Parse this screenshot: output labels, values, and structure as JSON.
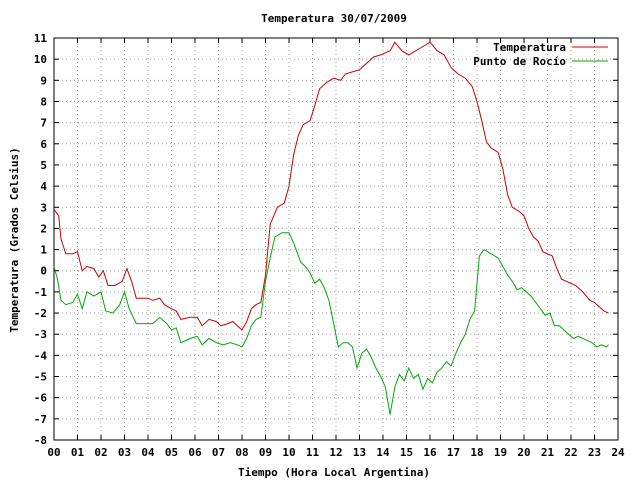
{
  "chart_data": {
    "type": "line",
    "title": "Temperatura 30/07/2009",
    "xlabel": "Tiempo (Hora Local Argentina)",
    "ylabel": "Temperatura (Grados Celsius)",
    "xlim": [
      0,
      24
    ],
    "ylim": [
      -8,
      11
    ],
    "x_ticks": [
      "00",
      "01",
      "02",
      "03",
      "04",
      "05",
      "06",
      "07",
      "08",
      "09",
      "10",
      "11",
      "12",
      "13",
      "14",
      "15",
      "16",
      "17",
      "18",
      "19",
      "20",
      "21",
      "22",
      "23",
      "24"
    ],
    "y_ticks": [
      "-8",
      "-7",
      "-6",
      "-5",
      "-4",
      "-3",
      "-2",
      "-1",
      "0",
      "1",
      "2",
      "3",
      "4",
      "5",
      "6",
      "7",
      "8",
      "9",
      "10",
      "11"
    ],
    "grid": true,
    "legend_position": "top-right",
    "series": [
      {
        "name": "Temperatura",
        "color": "#cc0000",
        "points": [
          [
            0.0,
            2.9
          ],
          [
            0.2,
            2.6
          ],
          [
            0.3,
            1.5
          ],
          [
            0.5,
            0.8
          ],
          [
            0.8,
            0.8
          ],
          [
            1.0,
            0.9
          ],
          [
            1.2,
            0.0
          ],
          [
            1.4,
            0.2
          ],
          [
            1.7,
            0.1
          ],
          [
            1.9,
            -0.3
          ],
          [
            2.1,
            0.0
          ],
          [
            2.3,
            -0.7
          ],
          [
            2.6,
            -0.7
          ],
          [
            2.9,
            -0.5
          ],
          [
            3.1,
            0.1
          ],
          [
            3.3,
            -0.5
          ],
          [
            3.5,
            -1.3
          ],
          [
            4.0,
            -1.3
          ],
          [
            4.2,
            -1.4
          ],
          [
            4.5,
            -1.3
          ],
          [
            4.7,
            -1.6
          ],
          [
            5.0,
            -1.8
          ],
          [
            5.2,
            -1.9
          ],
          [
            5.4,
            -2.3
          ],
          [
            5.8,
            -2.2
          ],
          [
            6.1,
            -2.2
          ],
          [
            6.3,
            -2.6
          ],
          [
            6.6,
            -2.3
          ],
          [
            6.9,
            -2.4
          ],
          [
            7.1,
            -2.6
          ],
          [
            7.4,
            -2.5
          ],
          [
            7.6,
            -2.4
          ],
          [
            7.8,
            -2.6
          ],
          [
            8.0,
            -2.8
          ],
          [
            8.2,
            -2.4
          ],
          [
            8.4,
            -1.8
          ],
          [
            8.6,
            -1.6
          ],
          [
            8.8,
            -1.5
          ],
          [
            9.0,
            -0.2
          ],
          [
            9.2,
            2.2
          ],
          [
            9.5,
            3.0
          ],
          [
            9.8,
            3.2
          ],
          [
            10.0,
            4.0
          ],
          [
            10.2,
            5.5
          ],
          [
            10.4,
            6.4
          ],
          [
            10.6,
            6.9
          ],
          [
            10.9,
            7.1
          ],
          [
            11.1,
            7.8
          ],
          [
            11.3,
            8.6
          ],
          [
            11.6,
            8.9
          ],
          [
            11.9,
            9.1
          ],
          [
            12.2,
            9.0
          ],
          [
            12.4,
            9.3
          ],
          [
            12.7,
            9.4
          ],
          [
            13.0,
            9.5
          ],
          [
            13.3,
            9.8
          ],
          [
            13.6,
            10.1
          ],
          [
            13.9,
            10.2
          ],
          [
            14.1,
            10.3
          ],
          [
            14.3,
            10.4
          ],
          [
            14.5,
            10.8
          ],
          [
            14.8,
            10.4
          ],
          [
            15.1,
            10.2
          ],
          [
            15.4,
            10.4
          ],
          [
            15.7,
            10.6
          ],
          [
            16.0,
            10.8
          ],
          [
            16.3,
            10.4
          ],
          [
            16.6,
            10.2
          ],
          [
            16.9,
            9.6
          ],
          [
            17.2,
            9.3
          ],
          [
            17.5,
            9.1
          ],
          [
            17.8,
            8.7
          ],
          [
            18.0,
            8.0
          ],
          [
            18.2,
            7.1
          ],
          [
            18.4,
            6.1
          ],
          [
            18.6,
            5.8
          ],
          [
            18.9,
            5.6
          ],
          [
            19.1,
            4.8
          ],
          [
            19.3,
            3.6
          ],
          [
            19.5,
            3.0
          ],
          [
            19.8,
            2.8
          ],
          [
            20.0,
            2.6
          ],
          [
            20.2,
            2.0
          ],
          [
            20.4,
            1.6
          ],
          [
            20.6,
            1.4
          ],
          [
            20.8,
            0.9
          ],
          [
            21.0,
            0.8
          ],
          [
            21.2,
            0.7
          ],
          [
            21.4,
            0.1
          ],
          [
            21.6,
            -0.4
          ],
          [
            21.8,
            -0.5
          ],
          [
            22.0,
            -0.6
          ],
          [
            22.2,
            -0.7
          ],
          [
            22.5,
            -1.0
          ],
          [
            22.8,
            -1.4
          ],
          [
            23.0,
            -1.5
          ],
          [
            23.2,
            -1.7
          ],
          [
            23.4,
            -1.9
          ],
          [
            23.6,
            -2.0
          ]
        ]
      },
      {
        "name": "Punto de Rocío",
        "color": "#00aa00",
        "points": [
          [
            0.0,
            0.2
          ],
          [
            0.15,
            -0.4
          ],
          [
            0.3,
            -1.4
          ],
          [
            0.5,
            -1.6
          ],
          [
            0.8,
            -1.5
          ],
          [
            1.0,
            -1.1
          ],
          [
            1.2,
            -1.8
          ],
          [
            1.4,
            -1.0
          ],
          [
            1.7,
            -1.2
          ],
          [
            2.0,
            -1.0
          ],
          [
            2.2,
            -1.9
          ],
          [
            2.5,
            -2.0
          ],
          [
            2.8,
            -1.6
          ],
          [
            3.0,
            -1.0
          ],
          [
            3.2,
            -1.8
          ],
          [
            3.5,
            -2.5
          ],
          [
            4.0,
            -2.5
          ],
          [
            4.2,
            -2.5
          ],
          [
            4.5,
            -2.2
          ],
          [
            4.8,
            -2.5
          ],
          [
            5.0,
            -2.8
          ],
          [
            5.2,
            -2.7
          ],
          [
            5.4,
            -3.4
          ],
          [
            5.8,
            -3.2
          ],
          [
            6.1,
            -3.1
          ],
          [
            6.3,
            -3.5
          ],
          [
            6.6,
            -3.2
          ],
          [
            6.9,
            -3.4
          ],
          [
            7.2,
            -3.5
          ],
          [
            7.5,
            -3.4
          ],
          [
            7.8,
            -3.5
          ],
          [
            8.0,
            -3.6
          ],
          [
            8.2,
            -3.2
          ],
          [
            8.4,
            -2.6
          ],
          [
            8.6,
            -2.3
          ],
          [
            8.8,
            -2.2
          ],
          [
            9.0,
            -0.5
          ],
          [
            9.2,
            0.6
          ],
          [
            9.4,
            1.6
          ],
          [
            9.7,
            1.8
          ],
          [
            10.0,
            1.8
          ],
          [
            10.2,
            1.3
          ],
          [
            10.5,
            0.4
          ],
          [
            10.7,
            0.2
          ],
          [
            10.9,
            -0.1
          ],
          [
            11.1,
            -0.6
          ],
          [
            11.3,
            -0.4
          ],
          [
            11.5,
            -0.8
          ],
          [
            11.7,
            -1.4
          ],
          [
            11.9,
            -2.5
          ],
          [
            12.1,
            -3.6
          ],
          [
            12.3,
            -3.4
          ],
          [
            12.5,
            -3.4
          ],
          [
            12.7,
            -3.6
          ],
          [
            12.9,
            -4.6
          ],
          [
            13.1,
            -3.9
          ],
          [
            13.3,
            -3.7
          ],
          [
            13.5,
            -4.1
          ],
          [
            13.7,
            -4.6
          ],
          [
            13.9,
            -5.0
          ],
          [
            14.1,
            -5.5
          ],
          [
            14.3,
            -6.8
          ],
          [
            14.5,
            -5.5
          ],
          [
            14.7,
            -4.9
          ],
          [
            14.9,
            -5.2
          ],
          [
            15.1,
            -4.6
          ],
          [
            15.3,
            -5.1
          ],
          [
            15.5,
            -4.9
          ],
          [
            15.7,
            -5.6
          ],
          [
            15.9,
            -5.1
          ],
          [
            16.1,
            -5.3
          ],
          [
            16.3,
            -4.8
          ],
          [
            16.5,
            -4.6
          ],
          [
            16.7,
            -4.3
          ],
          [
            16.9,
            -4.5
          ],
          [
            17.1,
            -3.9
          ],
          [
            17.3,
            -3.4
          ],
          [
            17.5,
            -3.0
          ],
          [
            17.7,
            -2.3
          ],
          [
            17.9,
            -1.9
          ],
          [
            18.1,
            0.7
          ],
          [
            18.3,
            1.0
          ],
          [
            18.6,
            0.8
          ],
          [
            18.9,
            0.6
          ],
          [
            19.1,
            0.2
          ],
          [
            19.3,
            -0.2
          ],
          [
            19.5,
            -0.5
          ],
          [
            19.7,
            -0.9
          ],
          [
            19.9,
            -0.8
          ],
          [
            20.1,
            -1.0
          ],
          [
            20.3,
            -1.2
          ],
          [
            20.5,
            -1.5
          ],
          [
            20.7,
            -1.8
          ],
          [
            20.9,
            -2.1
          ],
          [
            21.1,
            -2.0
          ],
          [
            21.3,
            -2.6
          ],
          [
            21.5,
            -2.6
          ],
          [
            21.7,
            -2.8
          ],
          [
            21.9,
            -3.0
          ],
          [
            22.1,
            -3.2
          ],
          [
            22.3,
            -3.1
          ],
          [
            22.5,
            -3.2
          ],
          [
            22.7,
            -3.3
          ],
          [
            22.9,
            -3.4
          ],
          [
            23.1,
            -3.6
          ],
          [
            23.3,
            -3.5
          ],
          [
            23.5,
            -3.6
          ],
          [
            23.6,
            -3.5
          ]
        ]
      }
    ]
  }
}
